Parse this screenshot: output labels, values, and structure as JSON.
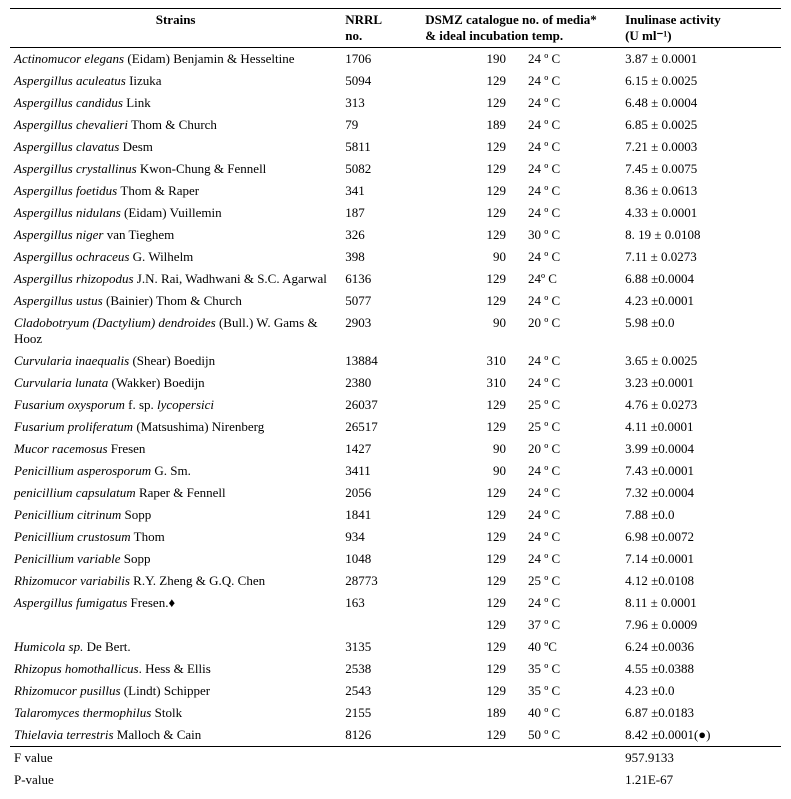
{
  "headers": {
    "strain": "Strains",
    "nrrl_line1": "NRRL",
    "nrrl_line2": "no.",
    "dsmz_line1": "DSMZ catalogue no. of media*",
    "dsmz_line2": "& ideal incubation temp.",
    "activity_line1": "Inulinase activity",
    "activity_line2": "(U ml⁻¹)"
  },
  "rows": [
    {
      "strain_i": "Actinomucor elegans",
      "strain_r": " (Eidam) Benjamin & Hesseltine",
      "nrrl": "1706",
      "media": "190",
      "temp": "24 º C",
      "act": "3.87 ± 0.0001"
    },
    {
      "strain_i": "Aspergillus aculeatus",
      "strain_r": " Iizuka",
      "nrrl": "5094",
      "media": "129",
      "temp": "24 º C",
      "act": "6.15 ±   0.0025"
    },
    {
      "strain_i": "Aspergillus candidus",
      "strain_r": " Link",
      "nrrl": "313",
      "media": "129",
      "temp": "24 º C",
      "act": "6.48 ±  0.0004"
    },
    {
      "strain_i": "Aspergillus chevalieri",
      "strain_r": " Thom & Church",
      "nrrl": "79",
      "media": "189",
      "temp": "24 º C",
      "act": "6.85 ± 0.0025"
    },
    {
      "strain_i": "Aspergillus clavatus",
      "strain_r": " Desm",
      "nrrl": "5811",
      "media": "129",
      "temp": "24 º C",
      "act": "7.21 ± 0.0003"
    },
    {
      "strain_i": "Aspergillus crystallinus",
      "strain_r": " Kwon-Chung & Fennell",
      "nrrl": "5082",
      "media": "129",
      "temp": "24 º C",
      "act": "7.45 ± 0.0075"
    },
    {
      "strain_i": "Aspergillus foetidus ",
      "strain_r": " Thom & Raper",
      "nrrl": "341",
      "media": "129",
      "temp": "24 º C",
      "act": "8.36 ± 0.0613"
    },
    {
      "strain_i": "Aspergillus nidulans",
      "strain_r": " (Eidam) Vuillemin",
      "nrrl": "187",
      "media": "129",
      "temp": "24 º C",
      "act": "4.33 ± 0.0001"
    },
    {
      "strain_i": "Aspergillus niger",
      "strain_r": " van Tieghem",
      "nrrl": "326",
      "media": "129",
      "temp": "30 º C",
      "act": "8. 19 ± 0.0108"
    },
    {
      "strain_i": "Aspergillus ochraceus",
      "strain_r": " G. Wilhelm",
      "nrrl": "398",
      "media": "90",
      "temp": "24 º C",
      "act": "7.11 ± 0.0273"
    },
    {
      "strain_i": "Aspergillus rhizopodus ",
      "strain_r": " J.N. Rai, Wadhwani & S.C. Agarwal",
      "nrrl": "6136",
      "media": "129",
      "temp": " 24º C",
      "act": "6.88 ±0.0004"
    },
    {
      "strain_i": "Aspergillus ustus",
      "strain_r": " (Bainier) Thom & Church",
      "nrrl": "5077",
      "media": "129",
      "temp": "24 º C",
      "act": "4.23 ±0.0001"
    },
    {
      "strain_i": "Cladobotryum (Dactylium) dendroides",
      "strain_r": " (Bull.) W. Gams & Hooz",
      "nrrl": "2903",
      "media": "90",
      "temp": "20 º C",
      "act": "5.98 ±0.0"
    },
    {
      "strain_i": "Curvularia inaequalis",
      "strain_r": " (Shear) Boedijn",
      "nrrl": "13884",
      "media": "310",
      "temp": "24 º C",
      "act": "3.65 ± 0.0025"
    },
    {
      "strain_i": "Curvularia lunata",
      "strain_r": " (Wakker) Boedijn",
      "nrrl": "2380",
      "media": "310",
      "temp": "24 º C",
      "act": "3.23 ±0.0001"
    },
    {
      "strain_i": "Fusarium oxysporum",
      "strain_r": " f. sp. ",
      "strain_i2": "lycopersici",
      "nrrl": "26037",
      "media": "129",
      "temp": "25 º C",
      "act": "4.76 ± 0.0273"
    },
    {
      "strain_i": "Fusarium proliferatum",
      "strain_r": " (Matsushima) Nirenberg",
      "nrrl": "26517",
      "media": "129",
      "temp": "25 º C",
      "act": "4.11 ±0.0001"
    },
    {
      "strain_i": "Mucor racemosus",
      "strain_r": " Fresen",
      "nrrl": "1427",
      "media": "90",
      "temp": "20 º C",
      "act": "3.99 ±0.0004"
    },
    {
      "strain_i": "Penicillium asperosporum",
      "strain_r": " G. Sm.",
      "nrrl": "3411",
      "media": "90",
      "temp": "24 º C",
      "act": "7.43 ±0.0001"
    },
    {
      "strain_i": "penicillium capsulatum",
      "strain_r": " Raper & Fennell",
      "nrrl": "2056",
      "media": "129",
      "temp": "24 º C",
      "act": "7.32 ±0.0004"
    },
    {
      "strain_i": "Penicillium citrinum",
      "strain_r": " Sopp",
      "nrrl": "1841",
      "media": "129",
      "temp": "24 º C",
      "act": "7.88 ±0.0"
    },
    {
      "strain_i": "Penicillium crustosum",
      "strain_r": " Thom",
      "nrrl": "934",
      "media": "129",
      "temp": "24 º C",
      "act": "6.98 ±0.0072"
    },
    {
      "strain_i": "Penicillium variable",
      "strain_r": " Sopp",
      "nrrl": "1048",
      "media": "129",
      "temp": "24 º C",
      "act": "7.14 ±0.0001"
    },
    {
      "strain_i": "Rhizomucor variabilis",
      "strain_r": " R.Y. Zheng & G.Q. Chen",
      "nrrl": "28773",
      "media": "129",
      "temp": "25 º C",
      "act": "4.12 ±0.0108"
    },
    {
      "strain_i": "Aspergillus fumigatus",
      "strain_r": " Fresen.♦",
      "nrrl": "163",
      "media": "129",
      "temp": "24 º C",
      "act": "8.11 ± 0.0001"
    },
    {
      "strain_i": "",
      "strain_r": "",
      "nrrl": "",
      "media": "129",
      "temp": "37 º C",
      "act": "7.96 ± 0.0009"
    },
    {
      "strain_i": "Humicola sp.",
      "strain_r": " De Bert.",
      "nrrl": "3135",
      "media": "129",
      "temp": "40  ºC",
      "act": "6.24 ±0.0036"
    },
    {
      "strain_i": "Rhizopus homothallicus",
      "strain_r": ". Hess & Ellis",
      "nrrl": "2538",
      "media": "129",
      "temp": "35 º  C",
      "act": "4.55 ±0.0388"
    },
    {
      "strain_i": "Rhizomucor pusillus",
      "strain_r": " (Lindt) Schipper",
      "nrrl": "2543",
      "media": "129",
      "temp": "35 º C",
      "act": "4.23 ±0.0"
    },
    {
      "strain_i": "Talaromyces thermophilus ",
      "strain_r": " Stolk",
      "nrrl": "2155",
      "media": "189",
      "temp": "40 º C",
      "act": "6.87 ±0.0183"
    },
    {
      "strain_i": "Thielavia terrestris",
      "strain_r": " Malloch & Cain",
      "nrrl": "8126",
      "media": "129",
      "temp": "50 º C",
      "act": "8.42 ±0.0001(●)"
    }
  ],
  "footer": [
    {
      "label": "F value",
      "value": "957.9133"
    },
    {
      "label": "P-value",
      "value": "1.21E-67"
    }
  ]
}
